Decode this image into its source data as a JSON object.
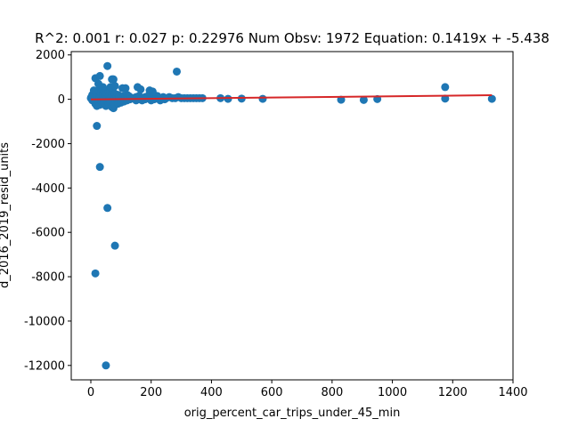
{
  "chart_data": {
    "type": "scatter",
    "title": "R^2: 0.001 r: 0.027 p: 0.22976 Num Obsv: 1972 Equation: 0.1419x + -5.438",
    "xlabel": "orig_percent_car_trips_under_45_min",
    "ylabel": "d_2016_2019_resid_units",
    "xlim": [
      -65,
      1400
    ],
    "ylim": [
      -12650,
      2150
    ],
    "x_ticks": [
      "0",
      "200",
      "400",
      "600",
      "800",
      "1000",
      "1200",
      "1400"
    ],
    "y_ticks": [
      "2000",
      "0",
      "-2000",
      "-4000",
      "-6000",
      "-8000",
      "-10000",
      "-12000"
    ],
    "grid": false,
    "point_color": "#1f77b4",
    "line_color": "#d62728",
    "fit_line": {
      "slope": 0.1419,
      "intercept": -5.438,
      "x_range": [
        0,
        1330
      ]
    },
    "points": {
      "x": [
        0,
        2,
        5,
        8,
        10,
        12,
        15,
        18,
        20,
        22,
        25,
        28,
        30,
        32,
        35,
        38,
        40,
        42,
        45,
        48,
        50,
        52,
        55,
        58,
        60,
        62,
        65,
        68,
        70,
        72,
        75,
        78,
        80,
        85,
        90,
        95,
        100,
        105,
        110,
        115,
        120,
        125,
        130,
        140,
        150,
        160,
        170,
        180,
        190,
        200,
        210,
        220,
        230,
        240,
        250,
        260,
        270,
        280,
        290,
        300,
        310,
        320,
        330,
        340,
        350,
        360,
        370,
        15,
        20,
        25,
        30,
        35,
        40,
        45,
        50,
        55,
        60,
        65,
        70,
        75,
        80,
        90,
        100,
        110,
        120,
        130,
        150,
        160,
        170,
        180,
        200,
        210,
        230,
        245,
        5,
        10,
        40,
        25,
        15,
        30,
        55,
        65,
        70,
        75,
        80,
        105,
        115,
        155,
        165,
        195,
        205,
        285,
        430,
        455,
        500,
        570,
        830,
        905,
        950,
        1175,
        1175,
        1330,
        20,
        30,
        55,
        15,
        80,
        50
      ],
      "y": [
        50,
        100,
        -50,
        150,
        200,
        -100,
        250,
        300,
        350,
        -150,
        400,
        100,
        200,
        300,
        -200,
        450,
        150,
        250,
        350,
        100,
        200,
        300,
        -250,
        400,
        150,
        250,
        350,
        100,
        200,
        -100,
        300,
        150,
        250,
        100,
        200,
        150,
        100,
        50,
        150,
        100,
        200,
        150,
        100,
        50,
        100,
        150,
        50,
        100,
        150,
        50,
        100,
        150,
        50,
        100,
        50,
        100,
        50,
        50,
        100,
        50,
        50,
        50,
        50,
        50,
        50,
        50,
        50,
        -200,
        -300,
        -150,
        -250,
        -100,
        -200,
        -150,
        -300,
        -100,
        -200,
        -150,
        -350,
        -400,
        -250,
        -200,
        -150,
        -100,
        -50,
        0,
        -50,
        0,
        -50,
        0,
        -50,
        0,
        -50,
        0,
        200,
        400,
        550,
        700,
        950,
        1050,
        1500,
        550,
        900,
        900,
        600,
        500,
        500,
        550,
        450,
        400,
        350,
        1250,
        50,
        20,
        30,
        20,
        -20,
        -30,
        10,
        30,
        550,
        20,
        -1200,
        -3050,
        -4900,
        -7850,
        -6600,
        -12000
      ]
    }
  }
}
